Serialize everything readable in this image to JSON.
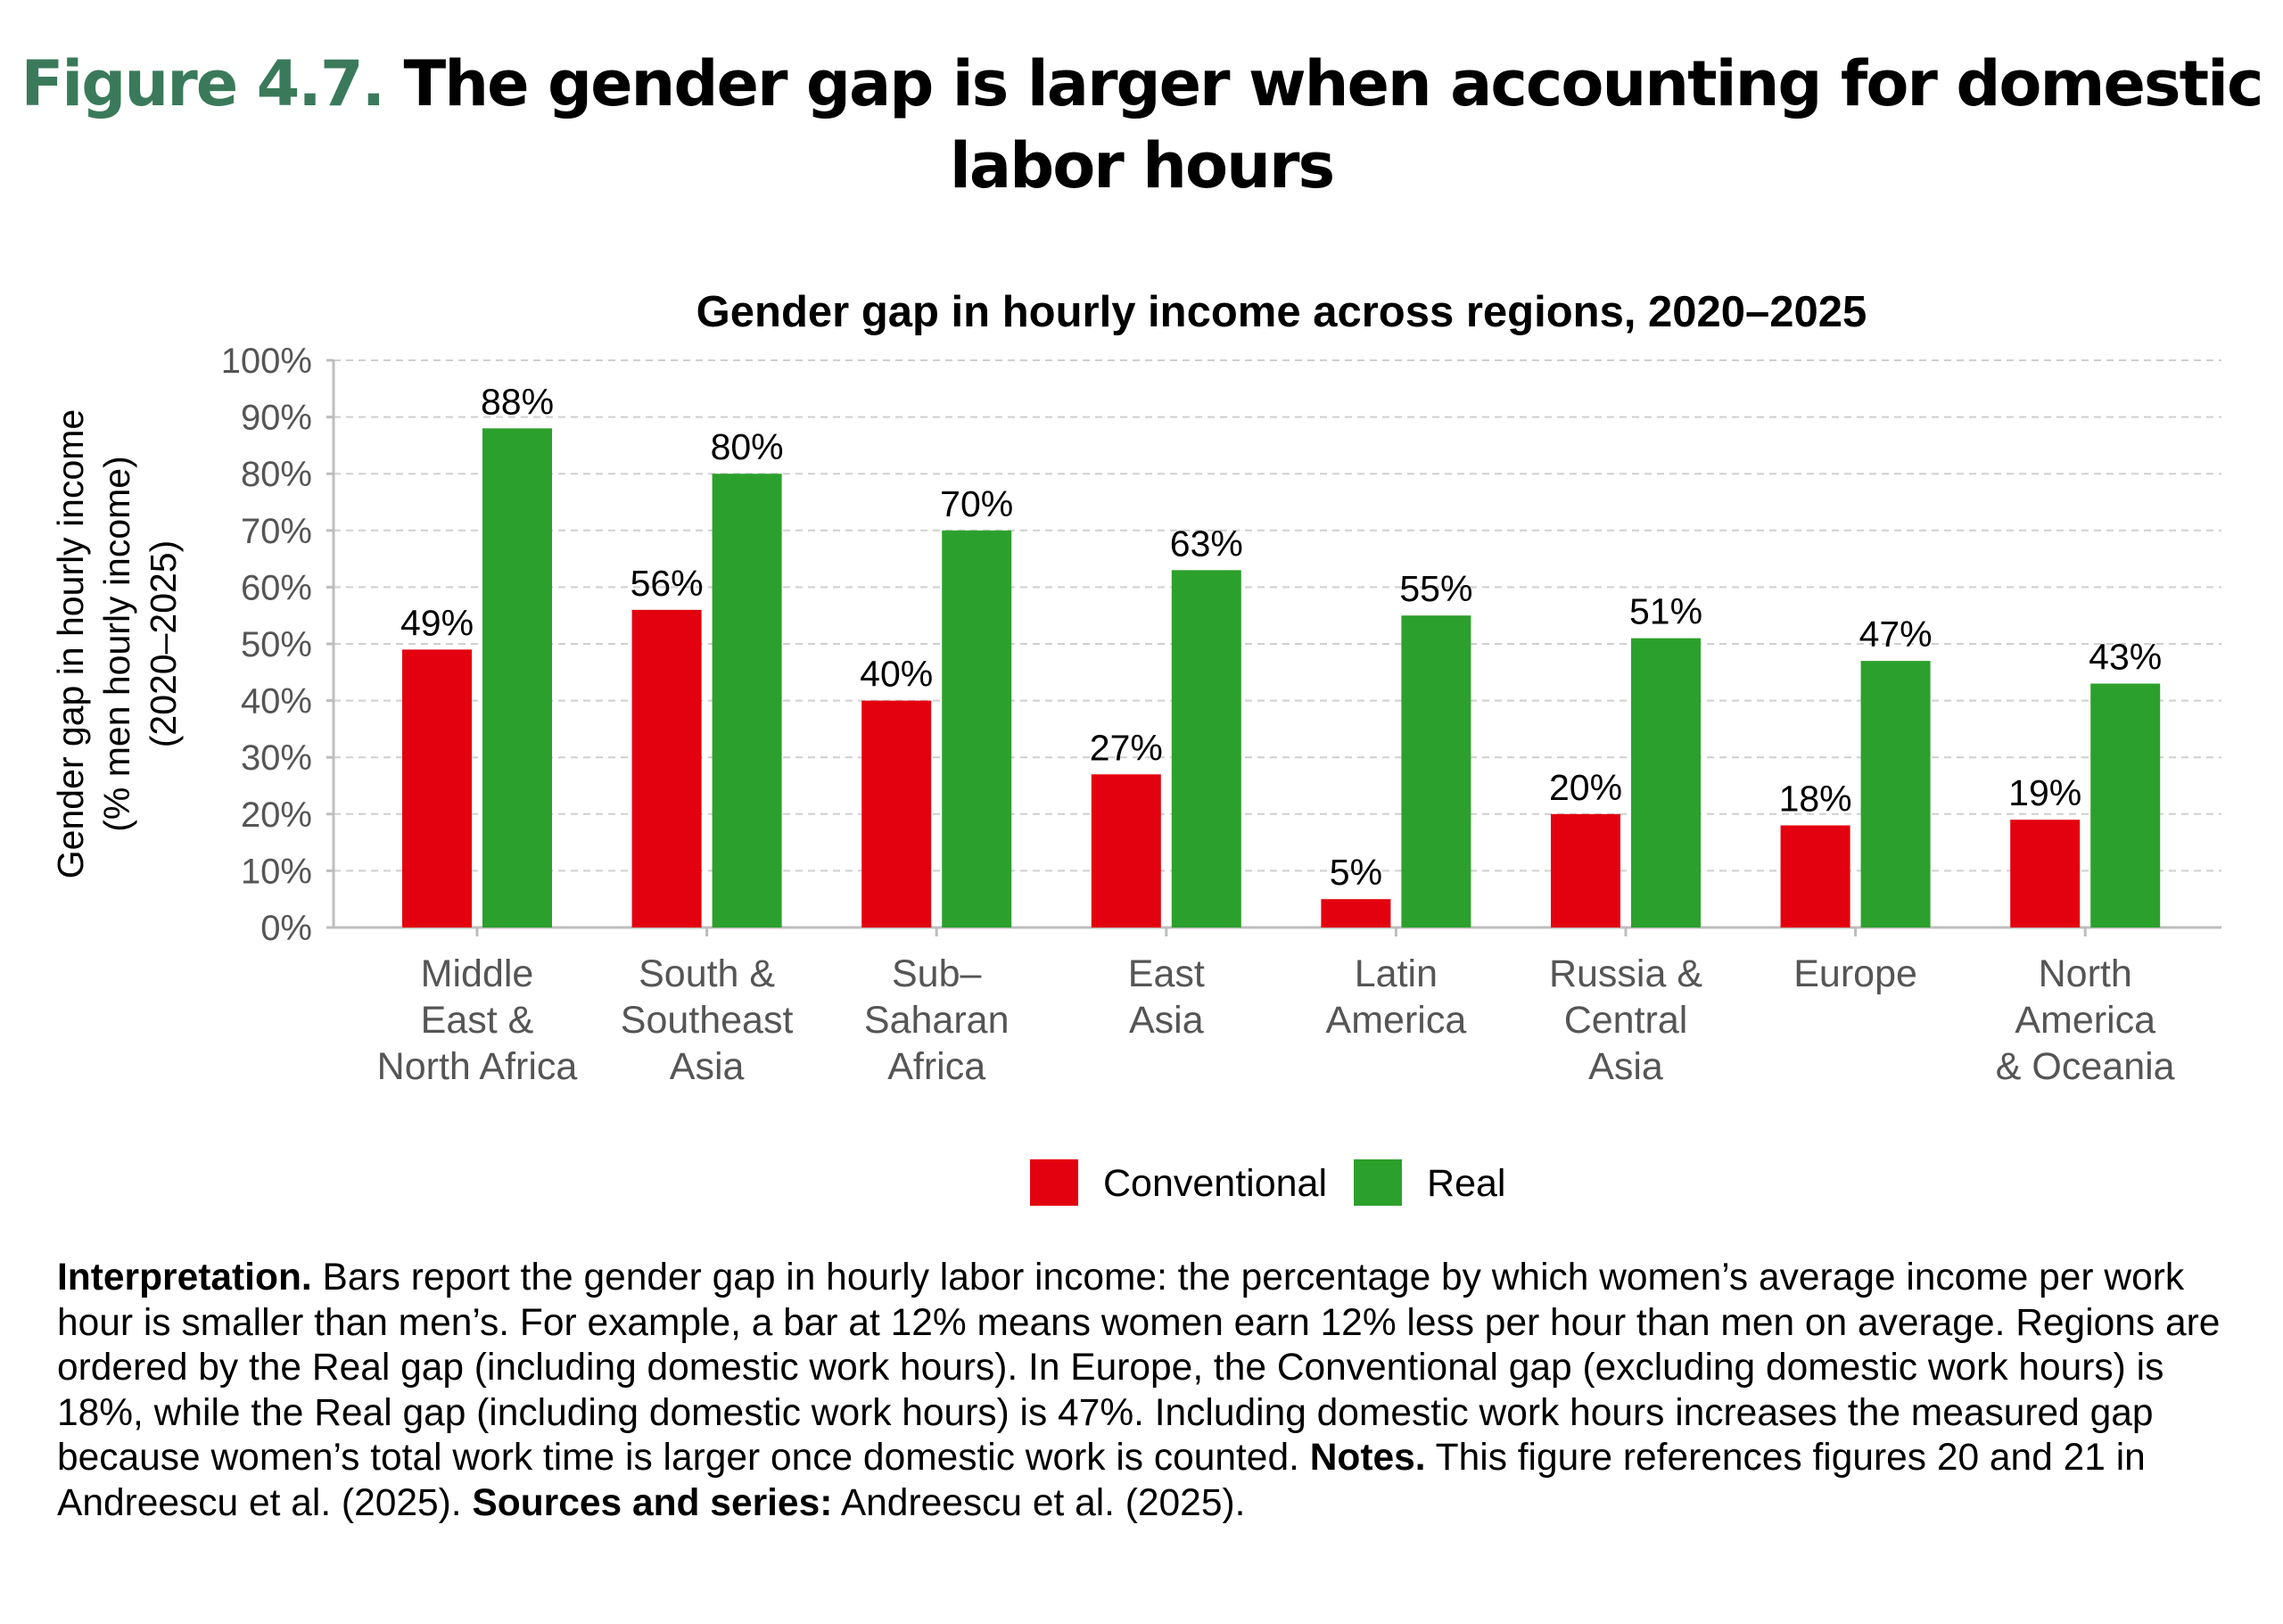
{
  "figure": {
    "number": "Figure 4.7.",
    "title": "The gender gap is larger when accounting for domestic labor hours"
  },
  "chart_data": {
    "type": "bar",
    "title": "Gender gap in hourly income across regions, 2020–2025",
    "ylabel_lines": [
      "Gender gap in hourly income",
      "(% men hourly income)",
      "(2020–2025)"
    ],
    "xlabel": "",
    "ylim": [
      0,
      100
    ],
    "yticks": [
      0,
      10,
      20,
      30,
      40,
      50,
      60,
      70,
      80,
      90,
      100
    ],
    "ytick_labels": [
      "0%",
      "10%",
      "20%",
      "30%",
      "40%",
      "50%",
      "60%",
      "70%",
      "80%",
      "90%",
      "100%"
    ],
    "grid": true,
    "legend_position": "bottom",
    "categories": [
      [
        "Middle",
        "East &",
        "North Africa"
      ],
      [
        "South &",
        "Southeast",
        "Asia"
      ],
      [
        "Sub–",
        "Saharan",
        "Africa"
      ],
      [
        "East",
        "Asia"
      ],
      [
        "Latin",
        "America"
      ],
      [
        "Russia &",
        "Central",
        "Asia"
      ],
      [
        "Europe"
      ],
      [
        "North",
        "America",
        "& Oceania"
      ]
    ],
    "series": [
      {
        "name": "Conventional",
        "color": "#e3000f",
        "values": [
          49,
          56,
          40,
          27,
          5,
          20,
          18,
          19
        ],
        "labels": [
          "49%",
          "56%",
          "40%",
          "27%",
          "5%",
          "20%",
          "18%",
          "19%"
        ]
      },
      {
        "name": "Real",
        "color": "#2ca02c",
        "values": [
          88,
          80,
          70,
          63,
          55,
          51,
          47,
          43
        ],
        "labels": [
          "88%",
          "80%",
          "70%",
          "63%",
          "55%",
          "51%",
          "47%",
          "43%"
        ]
      }
    ]
  },
  "notes": {
    "interpretation_label": "Interpretation.",
    "interpretation_text": " Bars report the gender gap in hourly labor income: the percentage by which women’s average income per work hour is smaller than men’s. For example, a bar at 12% means women earn 12% less per hour than men on average. Regions are ordered by the Real gap (including domestic work hours). In Europe, the Conventional gap (excluding domestic work hours) is 18%, while the Real gap (including domestic work hours) is 47%. Including domestic work hours increases the measured gap because women’s total work time is larger once domestic work is counted.",
    "notes_label": " Notes.",
    "notes_text": " This figure references figures 20 and 21 in Andreescu et al. (2025).",
    "sources_label": " Sources and series:",
    "sources_text": " Andreescu et al. (2025)."
  }
}
